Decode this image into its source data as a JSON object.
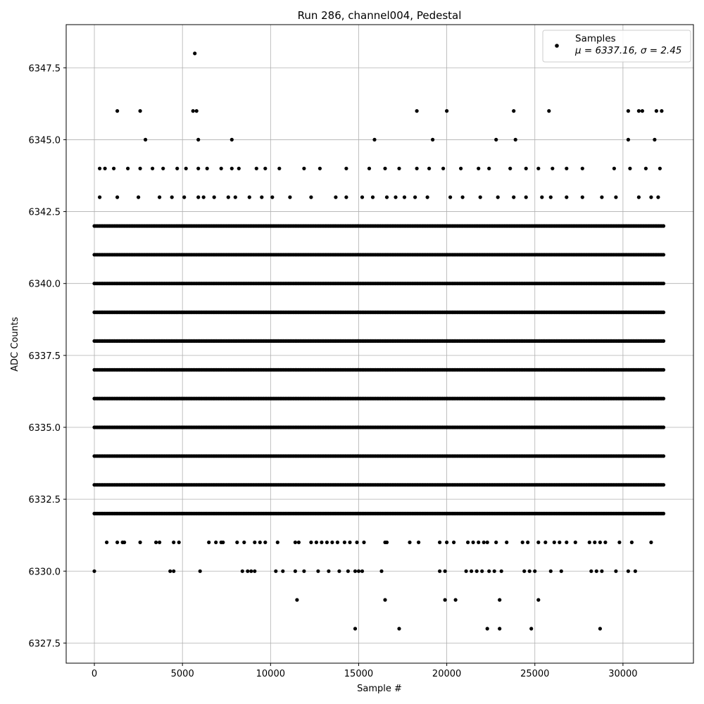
{
  "chart_data": {
    "type": "scatter",
    "title": "Run 286, channel004, Pedestal",
    "xlabel": "Sample #",
    "ylabel": "ADC Counts",
    "xlim": [
      -1600,
      34000
    ],
    "ylim": [
      6326.8,
      6349.0
    ],
    "x_ticks": [
      0,
      5000,
      10000,
      15000,
      20000,
      25000,
      30000
    ],
    "y_ticks": [
      6327.5,
      6330.0,
      6332.5,
      6335.0,
      6337.5,
      6340.0,
      6342.5,
      6345.0,
      6347.5
    ],
    "grid": true,
    "marker_color": "#000000",
    "legend": {
      "position": "top-right",
      "label": "Samples",
      "stats_text": "μ = 6337.16, σ = 2.45"
    },
    "series": [
      {
        "name": "Samples",
        "x_range": [
          0,
          32300
        ],
        "band_coverage": [
          {
            "y": 6345,
            "points": [
              2900,
              5900,
              7800,
              15900,
              19200,
              22800,
              23900,
              30300,
              31800
            ]
          },
          {
            "y": 6346,
            "points": [
              1300,
              2600,
              5600,
              5800,
              18300,
              20000,
              23800,
              25800,
              30300,
              30900,
              31100,
              31900,
              32200
            ]
          },
          {
            "y": 6348,
            "points": [
              5700
            ]
          },
          {
            "y": 6328,
            "points": [
              14800,
              17300,
              22300,
              23000,
              24800,
              28700
            ]
          },
          {
            "y": 6329,
            "points": [
              11500,
              16500,
              19900,
              20500,
              23000,
              25200
            ]
          },
          {
            "y": 6330,
            "points": [
              0,
              4300,
              4500,
              6000,
              8400,
              8700,
              8900,
              9100,
              10300,
              10700,
              11400,
              11900,
              12700,
              13300,
              13900,
              14400,
              14800,
              15000,
              15200,
              16300,
              19600,
              19900,
              21100,
              21400,
              21700,
              22000,
              22400,
              22700,
              23100,
              24400,
              24700,
              25000,
              25900,
              26500,
              28200,
              28500,
              28800,
              29600,
              30300,
              30700
            ]
          },
          {
            "y": 6331,
            "points": [
              700,
              1300,
              1600,
              1700,
              2600,
              3500,
              3700,
              4500,
              4800,
              6500,
              6900,
              7200,
              7300,
              8100,
              8500,
              9100,
              9400,
              9700,
              10400,
              11400,
              11600,
              12300,
              12600,
              12900,
              13200,
              13500,
              13800,
              14200,
              14500,
              14900,
              15300,
              16500,
              16600,
              17900,
              18400,
              19600,
              20000,
              20400,
              21200,
              21500,
              21800,
              22100,
              22300,
              22800,
              23400,
              24300,
              24600,
              25200,
              25600,
              26100,
              26400,
              26800,
              27300,
              28100,
              28400,
              28700,
              29000,
              29800,
              30500,
              31600
            ]
          },
          {
            "y": 6343,
            "points": [
              300,
              1300,
              2500,
              3700,
              4400,
              5100,
              5900,
              6200,
              6800,
              7600,
              8000,
              8800,
              9500,
              10100,
              11100,
              12300,
              13700,
              14300,
              15200,
              15800,
              16600,
              17100,
              17600,
              18200,
              18900,
              20200,
              20900,
              21900,
              22900,
              23800,
              24500,
              25400,
              25900,
              26800,
              27700,
              28800,
              29600,
              30900,
              31600,
              32000
            ]
          },
          {
            "y": 6344,
            "points": [
              300,
              600,
              1100,
              1900,
              2600,
              3300,
              3900,
              4700,
              5200,
              5900,
              6400,
              7200,
              7800,
              8200,
              9200,
              9700,
              10500,
              11900,
              12800,
              14300,
              15600,
              16500,
              17300,
              18300,
              19000,
              19800,
              20800,
              21800,
              22400,
              23600,
              24500,
              25200,
              26000,
              26800,
              27700,
              29500,
              30400,
              31300,
              32100
            ]
          }
        ],
        "dense_bands": [
          6332,
          6333,
          6334,
          6335,
          6336,
          6337,
          6338,
          6339,
          6340,
          6341,
          6342
        ]
      }
    ]
  }
}
